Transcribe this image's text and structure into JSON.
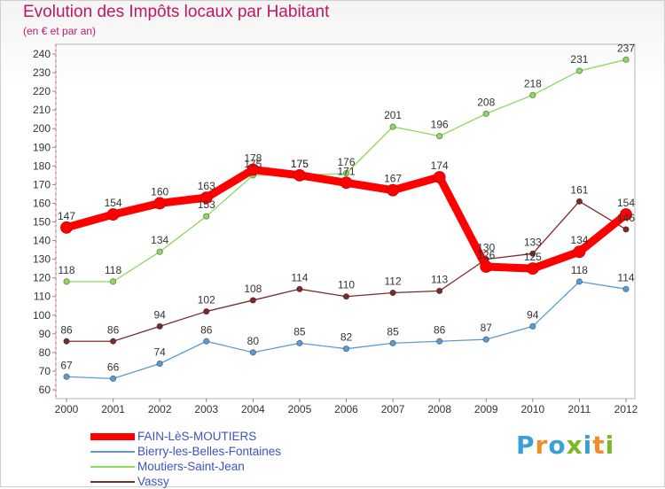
{
  "header": {
    "title": "Evolution des Impôts locaux par Habitant",
    "subtitle": "(en € et par an)"
  },
  "chart_data": {
    "type": "line",
    "title": "Evolution des Impôts locaux par Habitant",
    "subtitle": "(en € et par an)",
    "xlabel": "",
    "ylabel": "",
    "x": [
      "2000",
      "2001",
      "2002",
      "2003",
      "2004",
      "2005",
      "2006",
      "2007",
      "2008",
      "2009",
      "2010",
      "2011",
      "2012"
    ],
    "yticks": [
      60,
      70,
      80,
      90,
      100,
      110,
      120,
      130,
      140,
      150,
      160,
      170,
      180,
      190,
      200,
      210,
      220,
      230,
      240
    ],
    "ylim": [
      60,
      240
    ],
    "grid": false,
    "legend": "bottom-left",
    "series": [
      {
        "name": "FAIN-LèS-MOUTIERS",
        "color": "#ff0000",
        "emphasis": true,
        "values": [
          147,
          154,
          160,
          163,
          178,
          175,
          171,
          167,
          174,
          126,
          125,
          134,
          154
        ],
        "labels": [
          "147",
          "154",
          "160",
          "163",
          "178",
          "175",
          "171",
          "167",
          "174",
          "126",
          "125",
          "134",
          "154"
        ]
      },
      {
        "name": "Bierry-les-Belles-Fontaines",
        "color": "#5b9bd5",
        "values": [
          67,
          66,
          74,
          86,
          80,
          85,
          82,
          85,
          86,
          87,
          94,
          118,
          114
        ],
        "labels": [
          "67",
          "66",
          "74",
          "86",
          "80",
          "85",
          "82",
          "85",
          "86",
          "87",
          "94",
          "118",
          "114"
        ]
      },
      {
        "name": "Moutiers-Saint-Jean",
        "color": "#8ed95f",
        "values": [
          118,
          118,
          134,
          153,
          175,
          175,
          176,
          201,
          196,
          208,
          218,
          231,
          237
        ],
        "labels": [
          "118",
          "118",
          "134",
          "153",
          "175",
          "175",
          "176",
          "201",
          "196",
          "208",
          "218",
          "231",
          "237"
        ]
      },
      {
        "name": "Vassy",
        "color": "#7b2b2b",
        "values": [
          86,
          86,
          94,
          102,
          108,
          114,
          110,
          112,
          113,
          130,
          133,
          161,
          146
        ],
        "labels": [
          "86",
          "86",
          "94",
          "102",
          "108",
          "114",
          "110",
          "112",
          "113",
          "130",
          "133",
          "161",
          "146"
        ]
      }
    ]
  },
  "logo": {
    "text": "Proxiti",
    "colors": [
      "#3aa0d8",
      "#f28c28",
      "#3aa0d8",
      "#79b928",
      "#3aa0d8",
      "#f28c28",
      "#79b928"
    ]
  }
}
